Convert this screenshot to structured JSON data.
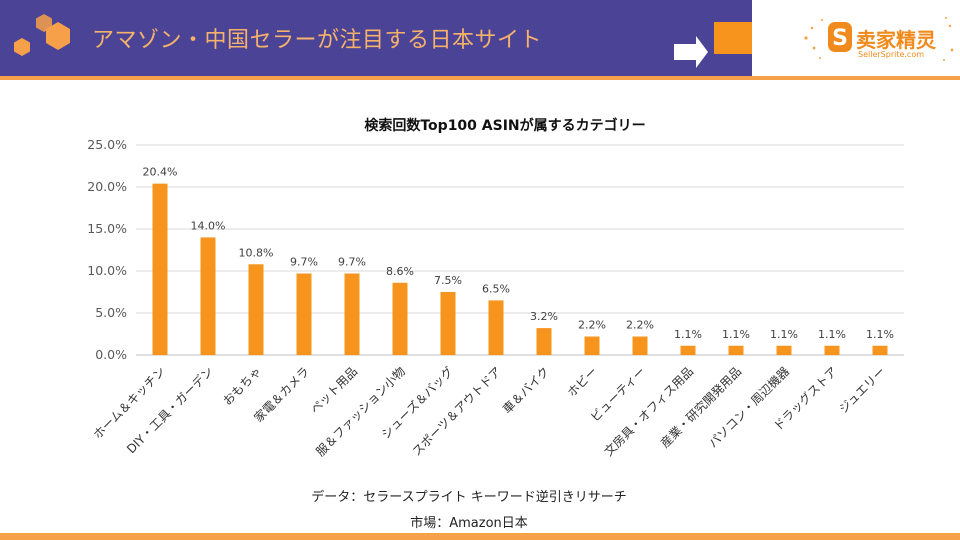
{
  "header": {
    "title": "アマゾン・中国セラーが注目する日本サイト",
    "logo_cn": "卖家精灵",
    "logo_en": "SellerSprite.com",
    "colors": {
      "bar": "#4b4496",
      "accent": "#f7a04a",
      "title_text": "#f6b26b"
    }
  },
  "footer": {
    "source_note": "データ：セラースプライト キーワード逆引きリサーチ",
    "market_note": "市場：Amazon日本"
  },
  "chart_data": {
    "type": "bar",
    "title": "検索回数Top100 ASINが属するカテゴリー",
    "xlabel": "",
    "ylabel": "",
    "ylim": [
      0,
      25
    ],
    "yticks": [
      "0.0%",
      "5.0%",
      "10.0%",
      "15.0%",
      "20.0%",
      "25.0%"
    ],
    "grid": true,
    "bar_color": "#f7941d",
    "categories": [
      "ホーム＆キッチン",
      "DIY・工具・ガーデン",
      "おもちゃ",
      "家電＆カメラ",
      "ペット用品",
      "服＆ファッション小物",
      "シューズ＆バッグ",
      "スポーツ＆アウトドア",
      "車＆バイク",
      "ホビー",
      "ビューティー",
      "文房具・オフィス用品",
      "産業・研究開発用品",
      "パソコン・周辺機器",
      "ドラッグストア",
      "ジュエリー"
    ],
    "values": [
      20.4,
      14.0,
      10.8,
      9.7,
      9.7,
      8.6,
      7.5,
      6.5,
      3.2,
      2.2,
      2.2,
      1.1,
      1.1,
      1.1,
      1.1,
      1.1
    ],
    "labels": [
      "20.4%",
      "14.0%",
      "10.8%",
      "9.7%",
      "9.7%",
      "8.6%",
      "7.5%",
      "6.5%",
      "3.2%",
      "2.2%",
      "2.2%",
      "1.1%",
      "1.1%",
      "1.1%",
      "1.1%",
      "1.1%"
    ]
  }
}
